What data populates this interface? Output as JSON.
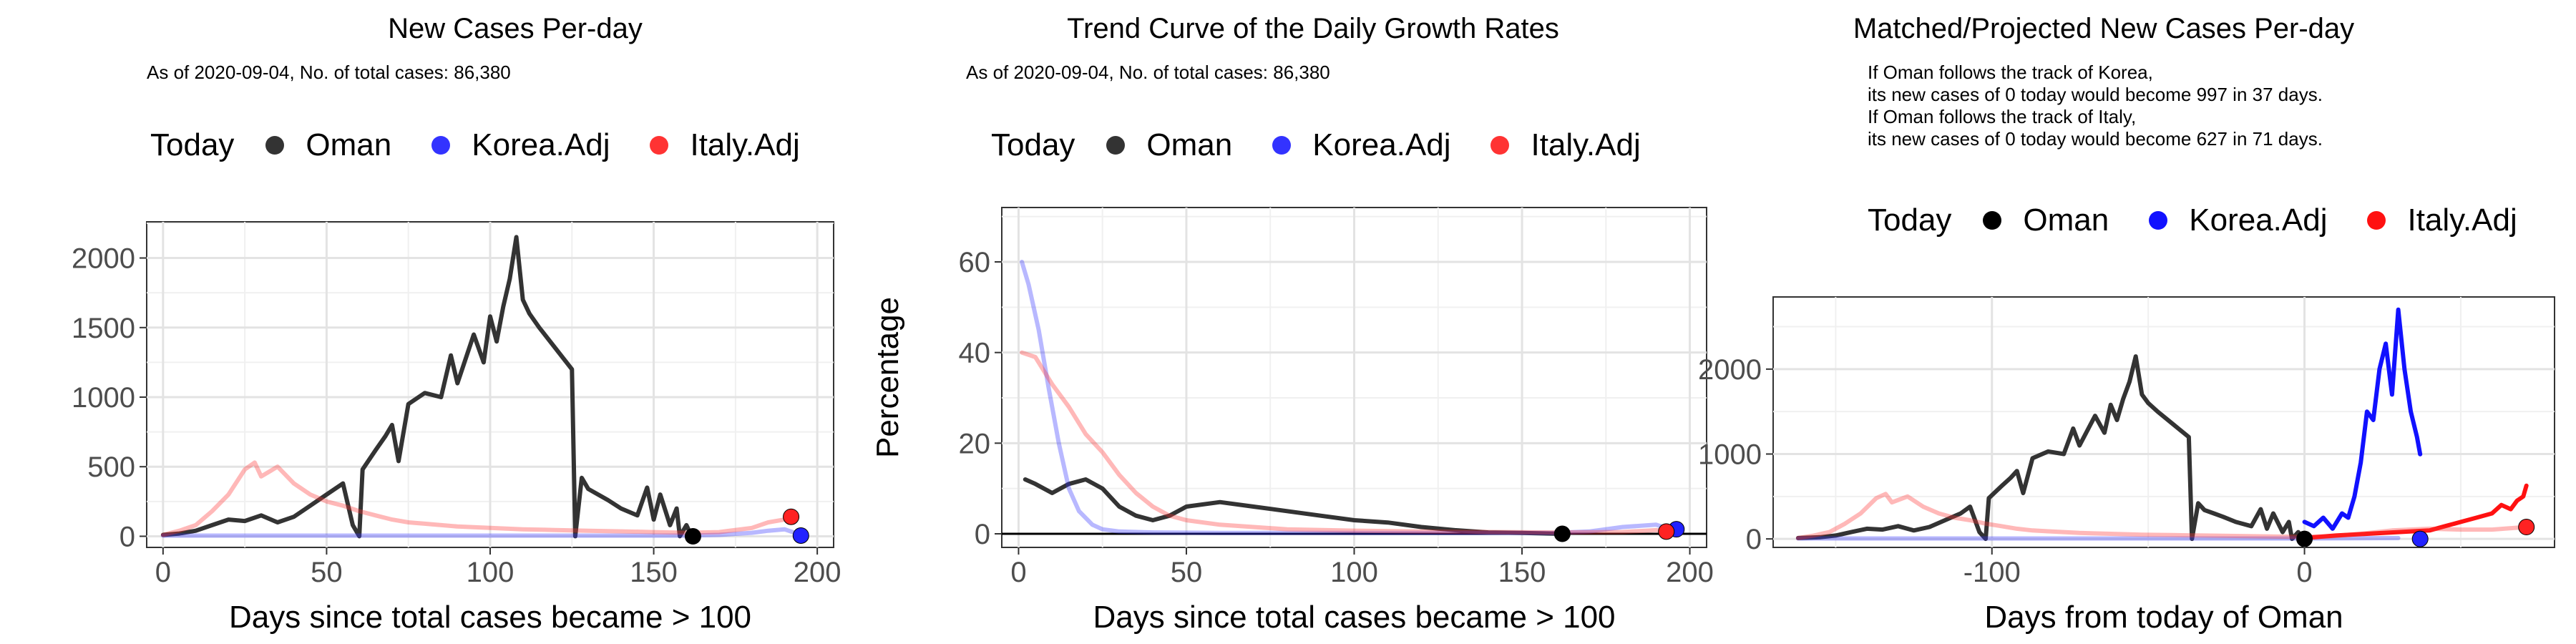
{
  "chart_data": [
    {
      "type": "line",
      "title": "New Cases Per-day",
      "subtitle": "As of 2020-09-04, No. of total cases: 86,380",
      "xlabel": "Days since total cases became > 100",
      "ylabel": "",
      "xlim": [
        -5,
        205
      ],
      "ylim": [
        -80,
        2260
      ],
      "xticks": [
        0,
        50,
        100,
        150,
        200
      ],
      "yticks": [
        0,
        500,
        1000,
        1500,
        2000
      ],
      "grid": true,
      "legend": {
        "position": "top",
        "title": "Today",
        "entries": [
          "Oman",
          "Korea.Adj",
          "Italy.Adj"
        ]
      },
      "series": [
        {
          "name": "Oman",
          "color": "#333333",
          "opacity": 1,
          "x": [
            0,
            5,
            10,
            15,
            20,
            25,
            30,
            35,
            40,
            45,
            50,
            55,
            58,
            60,
            61,
            65,
            68,
            70,
            72,
            75,
            80,
            85,
            88,
            90,
            95,
            98,
            100,
            102,
            104,
            106,
            108,
            110,
            112,
            115,
            120,
            125,
            126,
            128,
            130,
            133,
            136,
            140,
            145,
            148,
            150,
            152,
            155,
            157,
            158,
            160,
            161,
            162
          ],
          "y": [
            10,
            20,
            40,
            80,
            120,
            110,
            150,
            100,
            140,
            220,
            300,
            380,
            80,
            0,
            480,
            620,
            720,
            800,
            540,
            950,
            1030,
            1000,
            1300,
            1100,
            1450,
            1250,
            1580,
            1400,
            1650,
            1850,
            2150,
            1700,
            1600,
            1500,
            1350,
            1200,
            0,
            420,
            340,
            300,
            260,
            200,
            150,
            350,
            120,
            300,
            80,
            200,
            0,
            80,
            30,
            0
          ]
        },
        {
          "name": "Korea.Adj",
          "color": "#3333ff",
          "opacity": 0.35,
          "x": [
            0,
            20,
            40,
            60,
            80,
            100,
            120,
            140,
            160,
            170,
            180,
            185,
            190,
            195
          ],
          "y": [
            5,
            5,
            5,
            5,
            5,
            5,
            5,
            5,
            5,
            10,
            25,
            40,
            50,
            10
          ]
        },
        {
          "name": "Italy.Adj",
          "color": "#ff3333",
          "opacity": 0.35,
          "x": [
            0,
            5,
            10,
            15,
            20,
            25,
            28,
            30,
            35,
            40,
            45,
            50,
            55,
            60,
            65,
            70,
            75,
            80,
            90,
            100,
            110,
            120,
            130,
            140,
            150,
            160,
            170,
            180,
            185,
            190
          ],
          "y": [
            10,
            40,
            80,
            180,
            300,
            480,
            530,
            430,
            500,
            380,
            300,
            250,
            220,
            180,
            150,
            120,
            100,
            90,
            70,
            60,
            50,
            45,
            40,
            35,
            30,
            25,
            30,
            60,
            100,
            120
          ]
        }
      ],
      "today_points": [
        {
          "name": "Oman",
          "x": 162,
          "y": 0,
          "color": "#000000"
        },
        {
          "name": "Korea.Adj",
          "x": 195,
          "y": 5,
          "color": "#2222ff"
        },
        {
          "name": "Italy.Adj",
          "x": 192,
          "y": 140,
          "color": "#ff2222"
        }
      ]
    },
    {
      "type": "line",
      "title": "Trend Curve of the Daily Growth Rates",
      "subtitle": "As of 2020-09-04, No. of total cases: 86,380",
      "xlabel": "Days since total cases became > 100",
      "ylabel": "Percentage",
      "xlim": [
        -5,
        205
      ],
      "ylim": [
        -3,
        72
      ],
      "xticks": [
        0,
        50,
        100,
        150,
        200
      ],
      "yticks": [
        0,
        20,
        40,
        60
      ],
      "grid": true,
      "hline": 0,
      "legend": {
        "position": "top",
        "title": "Today",
        "entries": [
          "Oman",
          "Korea.Adj",
          "Italy.Adj"
        ]
      },
      "series": [
        {
          "name": "Oman",
          "color": "#333333",
          "opacity": 1,
          "x": [
            2,
            5,
            10,
            15,
            20,
            25,
            30,
            35,
            40,
            45,
            50,
            60,
            70,
            80,
            90,
            100,
            110,
            120,
            130,
            140,
            150,
            162
          ],
          "y": [
            12,
            11,
            9,
            11,
            12,
            10,
            6,
            4,
            3,
            4,
            6,
            7,
            6,
            5,
            4,
            3,
            2.5,
            1.5,
            0.8,
            0.3,
            0.2,
            0
          ]
        },
        {
          "name": "Korea.Adj",
          "color": "#3333ff",
          "opacity": 0.35,
          "x": [
            1,
            3,
            6,
            9,
            12,
            15,
            18,
            22,
            25,
            30,
            40,
            60,
            80,
            100,
            120,
            140,
            160,
            170,
            180,
            190,
            196
          ],
          "y": [
            60,
            55,
            45,
            32,
            20,
            10,
            5,
            2,
            1,
            0.5,
            0.3,
            0.2,
            0.2,
            0.2,
            0.2,
            0.2,
            0.2,
            0.5,
            1.5,
            2,
            0.5
          ]
        },
        {
          "name": "Italy.Adj",
          "color": "#ff3333",
          "opacity": 0.35,
          "x": [
            1,
            5,
            10,
            15,
            20,
            25,
            30,
            35,
            40,
            45,
            50,
            60,
            70,
            80,
            100,
            120,
            140,
            160,
            180,
            190,
            193
          ],
          "y": [
            40,
            39,
            33,
            28,
            22,
            18,
            13,
            9,
            6,
            4,
            3,
            2,
            1.5,
            1,
            0.7,
            0.5,
            0.4,
            0.3,
            0.4,
            0.8,
            0.5
          ]
        }
      ],
      "today_points": [
        {
          "name": "Oman",
          "x": 162,
          "y": 0,
          "color": "#000000"
        },
        {
          "name": "Korea.Adj",
          "x": 196,
          "y": 1,
          "color": "#2222ff"
        },
        {
          "name": "Italy.Adj",
          "x": 193,
          "y": 0.5,
          "color": "#ff2222"
        }
      ]
    },
    {
      "type": "line",
      "title": "Matched/Projected New Cases Per-day",
      "annotation": [
        "If Oman follows the track of Korea,",
        "its new cases of 0 today would become 997 in 37 days.",
        "If Oman follows the track of Italy,",
        "its new cases of 0 today would become 627 in 71 days."
      ],
      "xlabel": "Days from today of Oman",
      "ylabel": "",
      "xlim": [
        -170,
        80
      ],
      "ylim": [
        -100,
        2850
      ],
      "xticks": [
        -100,
        0
      ],
      "yticks": [
        0,
        1000,
        2000
      ],
      "grid": true,
      "legend": {
        "position": "top",
        "title": "Today",
        "entries": [
          "Oman",
          "Korea.Adj",
          "Italy.Adj"
        ]
      },
      "series": [
        {
          "name": "Oman",
          "color": "#333333",
          "opacity": 1,
          "x": [
            -162,
            -155,
            -150,
            -145,
            -140,
            -135,
            -130,
            -125,
            -120,
            -115,
            -110,
            -107,
            -104,
            -102,
            -101,
            -97,
            -94,
            -92,
            -90,
            -87,
            -82,
            -77,
            -74,
            -72,
            -67,
            -64,
            -62,
            -60,
            -58,
            -56,
            -54,
            -52,
            -50,
            -47,
            -42,
            -37,
            -36,
            -34,
            -32,
            -29,
            -26,
            -22,
            -17,
            -14,
            -12,
            -10,
            -7,
            -5,
            -4,
            -2,
            -1,
            0
          ],
          "y": [
            10,
            20,
            40,
            80,
            120,
            110,
            150,
            100,
            140,
            220,
            300,
            380,
            80,
            0,
            480,
            620,
            720,
            800,
            540,
            950,
            1030,
            1000,
            1300,
            1100,
            1450,
            1250,
            1580,
            1400,
            1650,
            1850,
            2150,
            1700,
            1600,
            1500,
            1350,
            1200,
            0,
            420,
            340,
            300,
            260,
            200,
            150,
            350,
            120,
            300,
            80,
            200,
            0,
            80,
            30,
            0
          ]
        },
        {
          "name": "Korea.Adj",
          "color": "#1111ff",
          "opacity": 1,
          "x": [
            0,
            3,
            6,
            9,
            12,
            14,
            16,
            18,
            20,
            22,
            24,
            26,
            28,
            30,
            32,
            34,
            36,
            37
          ],
          "y": [
            200,
            150,
            250,
            120,
            300,
            250,
            500,
            900,
            1500,
            1400,
            2000,
            2300,
            1700,
            2700,
            2000,
            1500,
            1200,
            997
          ]
        },
        {
          "name": "Korea.Adj (past)",
          "color": "#3333ff",
          "opacity": 0.35,
          "x": [
            -162,
            -100,
            -50,
            0,
            30
          ],
          "y": [
            5,
            5,
            5,
            5,
            10
          ]
        },
        {
          "name": "Italy.Adj",
          "color": "#ff1111",
          "opacity": 1,
          "x": [
            0,
            10,
            20,
            30,
            40,
            45,
            50,
            55,
            60,
            63,
            66,
            68,
            70,
            71
          ],
          "y": [
            10,
            40,
            60,
            80,
            100,
            150,
            200,
            250,
            300,
            400,
            350,
            450,
            500,
            627
          ]
        },
        {
          "name": "Italy.Adj (past)",
          "color": "#ff3333",
          "opacity": 0.35,
          "x": [
            -162,
            -157,
            -152,
            -147,
            -142,
            -137,
            -134,
            -132,
            -127,
            -122,
            -117,
            -112,
            -107,
            -102,
            -97,
            -92,
            -87,
            -82,
            -72,
            -62,
            -52,
            -42,
            -32,
            -22,
            -12,
            -2,
            8,
            18,
            28,
            40,
            50,
            60,
            71
          ],
          "y": [
            10,
            40,
            80,
            180,
            300,
            480,
            530,
            430,
            500,
            380,
            300,
            250,
            220,
            180,
            150,
            120,
            100,
            90,
            70,
            60,
            50,
            45,
            40,
            35,
            30,
            25,
            30,
            60,
            100,
            120,
            110,
            110,
            140
          ]
        }
      ],
      "today_points": [
        {
          "name": "Oman",
          "x": 0,
          "y": 0,
          "color": "#000000"
        },
        {
          "name": "Korea.Adj",
          "x": 37,
          "y": 0,
          "color": "#2222ff"
        },
        {
          "name": "Italy.Adj",
          "x": 71,
          "y": 140,
          "color": "#ff2222"
        }
      ]
    }
  ]
}
